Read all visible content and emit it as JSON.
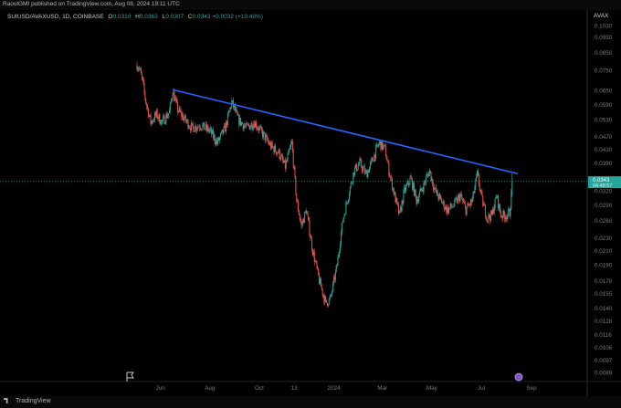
{
  "header": {
    "attribution": "RaoulGMI published on TradingView.com, Aug 08, 2024 19:11 UTC"
  },
  "legend": {
    "symbol": "SUIUSD/AVAXUSD, 1D, COINBASE",
    "open_label": "O",
    "open_value": "0.0310",
    "high_label": "H",
    "high_value": "0.0363",
    "low_label": "L",
    "low_value": "0.0307",
    "close_label": "C",
    "close_value": "0.0343",
    "change": "+0.0032 (+10.48%)"
  },
  "price_scale": {
    "title": "AVAX",
    "ticks": [
      "0.1030",
      "0.0950",
      "0.0850",
      "0.0750",
      "0.0650",
      "0.0590",
      "0.0530",
      "0.0470",
      "0.0430",
      "0.0390",
      "0.0350",
      "0.0320",
      "0.0290",
      "0.0260",
      "0.0230",
      "0.0210",
      "0.0190",
      "0.0170",
      "0.0155",
      "0.0140",
      "0.0128",
      "0.0116",
      "0.0106",
      "0.0097",
      "0.0089"
    ],
    "last_price": "0.0343",
    "countdown": "04:48:57"
  },
  "time_scale": {
    "ticks": [
      "Jun",
      "Aug",
      "Oct",
      "13",
      "2024",
      "Mar",
      "May",
      "Jul",
      "Sep"
    ]
  },
  "footer": {
    "brand": "TradingView"
  },
  "colors": {
    "up": "#26a69a",
    "down": "#ef5350",
    "trendline": "#2962ff",
    "background": "#000000"
  },
  "chart_data": {
    "type": "candlestick",
    "symbol": "SUIUSD/AVAXUSD",
    "scale": "log",
    "ylim": [
      0.0089,
      0.103
    ],
    "x_range": [
      "2023-05-03",
      "2024-09-10"
    ],
    "grid": false,
    "anchors": [
      {
        "date": "2023-05-03",
        "close": 0.078
      },
      {
        "date": "2023-05-06",
        "close": 0.076
      },
      {
        "date": "2023-05-10",
        "close": 0.069
      },
      {
        "date": "2023-05-14",
        "close": 0.06
      },
      {
        "date": "2023-05-20",
        "close": 0.052
      },
      {
        "date": "2023-05-27",
        "close": 0.055
      },
      {
        "date": "2023-06-03",
        "close": 0.052
      },
      {
        "date": "2023-06-12",
        "close": 0.056
      },
      {
        "date": "2023-06-16",
        "close": 0.065
      },
      {
        "date": "2023-06-22",
        "close": 0.057
      },
      {
        "date": "2023-07-01",
        "close": 0.053
      },
      {
        "date": "2023-07-10",
        "close": 0.05
      },
      {
        "date": "2023-07-20",
        "close": 0.051
      },
      {
        "date": "2023-08-01",
        "close": 0.049
      },
      {
        "date": "2023-08-10",
        "close": 0.045
      },
      {
        "date": "2023-08-20",
        "close": 0.05
      },
      {
        "date": "2023-08-28",
        "close": 0.06
      },
      {
        "date": "2023-09-05",
        "close": 0.053
      },
      {
        "date": "2023-09-15",
        "close": 0.05
      },
      {
        "date": "2023-09-25",
        "close": 0.052
      },
      {
        "date": "2023-10-05",
        "close": 0.048
      },
      {
        "date": "2023-10-15",
        "close": 0.044
      },
      {
        "date": "2023-10-25",
        "close": 0.042
      },
      {
        "date": "2023-11-02",
        "close": 0.038
      },
      {
        "date": "2023-11-10",
        "close": 0.045
      },
      {
        "date": "2023-11-16",
        "close": 0.03
      },
      {
        "date": "2023-11-22",
        "close": 0.025
      },
      {
        "date": "2023-11-28",
        "close": 0.028
      },
      {
        "date": "2023-12-06",
        "close": 0.021
      },
      {
        "date": "2023-12-14",
        "close": 0.017
      },
      {
        "date": "2023-12-22",
        "close": 0.0145
      },
      {
        "date": "2023-12-28",
        "close": 0.015
      },
      {
        "date": "2024-01-05",
        "close": 0.019
      },
      {
        "date": "2024-01-12",
        "close": 0.026
      },
      {
        "date": "2024-01-20",
        "close": 0.032
      },
      {
        "date": "2024-01-26",
        "close": 0.037
      },
      {
        "date": "2024-02-02",
        "close": 0.039
      },
      {
        "date": "2024-02-10",
        "close": 0.036
      },
      {
        "date": "2024-02-18",
        "close": 0.04
      },
      {
        "date": "2024-02-26",
        "close": 0.045
      },
      {
        "date": "2024-03-04",
        "close": 0.043
      },
      {
        "date": "2024-03-10",
        "close": 0.036
      },
      {
        "date": "2024-03-16",
        "close": 0.031
      },
      {
        "date": "2024-03-22",
        "close": 0.027
      },
      {
        "date": "2024-03-28",
        "close": 0.032
      },
      {
        "date": "2024-04-05",
        "close": 0.035
      },
      {
        "date": "2024-04-12",
        "close": 0.03
      },
      {
        "date": "2024-04-20",
        "close": 0.033
      },
      {
        "date": "2024-04-28",
        "close": 0.037
      },
      {
        "date": "2024-05-05",
        "close": 0.032
      },
      {
        "date": "2024-05-12",
        "close": 0.03
      },
      {
        "date": "2024-05-20",
        "close": 0.028
      },
      {
        "date": "2024-05-28",
        "close": 0.029
      },
      {
        "date": "2024-06-05",
        "close": 0.031
      },
      {
        "date": "2024-06-12",
        "close": 0.028
      },
      {
        "date": "2024-06-20",
        "close": 0.03
      },
      {
        "date": "2024-06-26",
        "close": 0.036
      },
      {
        "date": "2024-07-02",
        "close": 0.03
      },
      {
        "date": "2024-07-08",
        "close": 0.0265
      },
      {
        "date": "2024-07-14",
        "close": 0.027
      },
      {
        "date": "2024-07-20",
        "close": 0.031
      },
      {
        "date": "2024-07-25",
        "close": 0.027
      },
      {
        "date": "2024-08-01",
        "close": 0.027
      },
      {
        "date": "2024-08-05",
        "close": 0.0275
      },
      {
        "date": "2024-08-07",
        "close": 0.031
      },
      {
        "date": "2024-08-08",
        "close": 0.0343
      }
    ],
    "trendline": {
      "start": {
        "date": "2023-06-16",
        "price": 0.0655
      },
      "end": {
        "date": "2024-08-15",
        "price": 0.0362
      }
    },
    "last": {
      "date": "2024-08-08",
      "open": 0.031,
      "high": 0.0363,
      "low": 0.0307,
      "close": 0.0343
    }
  }
}
